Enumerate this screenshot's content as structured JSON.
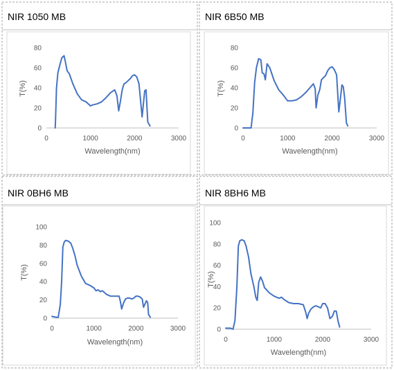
{
  "chart_data": [
    {
      "panel_title": "NIR 1050 MB",
      "type": "line",
      "xlabel": "Wavelength(nm)",
      "ylabel": "T(%)",
      "xlim": [
        0,
        3000
      ],
      "ylim": [
        0,
        80
      ],
      "xticks": [
        0,
        1000,
        2000,
        3000
      ],
      "yticks": [
        0,
        20,
        40,
        60,
        80
      ],
      "grid": false,
      "color": "#4472c4",
      "series": [
        {
          "x": [
            200,
            205,
            230,
            260,
            300,
            350,
            400,
            430,
            470,
            520,
            600,
            700,
            800,
            900,
            1000,
            1050,
            1150,
            1250,
            1350,
            1450,
            1550,
            1600,
            1640,
            1680,
            1720,
            1760,
            1800,
            1850,
            1900,
            1950,
            2000,
            2050,
            2100,
            2150,
            2170,
            2200,
            2230,
            2260,
            2300,
            2350
          ],
          "y": [
            0,
            6,
            40,
            55,
            62,
            70,
            72,
            66,
            57,
            54,
            44,
            34,
            28,
            26,
            22,
            23,
            24,
            26,
            30,
            35,
            38,
            32,
            17,
            27,
            38,
            44,
            45,
            47,
            49,
            52,
            53,
            51,
            44,
            21,
            11,
            24,
            37,
            38,
            6,
            2
          ]
        }
      ]
    },
    {
      "panel_title": "NIR 6B50 MB",
      "type": "line",
      "xlabel": "Wavelength(nm)",
      "ylabel": "T(%)",
      "xlim": [
        0,
        3000
      ],
      "ylim": [
        0,
        80
      ],
      "xticks": [
        0,
        1000,
        2000,
        3000
      ],
      "yticks": [
        0,
        20,
        40,
        60,
        80
      ],
      "grid": false,
      "color": "#4472c4",
      "series": [
        {
          "x": [
            0,
            100,
            180,
            220,
            260,
            300,
            350,
            400,
            430,
            470,
            500,
            540,
            600,
            700,
            800,
            900,
            1000,
            1100,
            1200,
            1300,
            1400,
            1500,
            1580,
            1620,
            1640,
            1680,
            1720,
            1760,
            1800,
            1850,
            1900,
            1950,
            2000,
            2050,
            2100,
            2150,
            2180,
            2220,
            2250,
            2280,
            2320,
            2350
          ],
          "y": [
            0,
            0,
            0,
            15,
            45,
            60,
            69,
            68,
            55,
            54,
            48,
            64,
            60,
            47,
            38,
            33,
            27,
            27,
            28,
            31,
            35,
            40,
            44,
            39,
            20,
            33,
            38,
            48,
            50,
            52,
            57,
            60,
            61,
            58,
            53,
            16,
            27,
            43,
            41,
            30,
            5,
            2
          ]
        }
      ]
    },
    {
      "panel_title": "NIR 0BH6 MB",
      "type": "line",
      "xlabel": "Wavelength(nm)",
      "ylabel": "T(%)",
      "xlim": [
        0,
        3000
      ],
      "ylim": [
        0,
        100
      ],
      "xticks": [
        0,
        1000,
        2000,
        3000
      ],
      "yticks": [
        0,
        20,
        40,
        60,
        80,
        100
      ],
      "grid": false,
      "color": "#4472c4",
      "series": [
        {
          "x": [
            0,
            100,
            150,
            200,
            230,
            260,
            290,
            320,
            350,
            400,
            450,
            500,
            550,
            600,
            700,
            800,
            900,
            1000,
            1050,
            1100,
            1150,
            1200,
            1300,
            1400,
            1500,
            1550,
            1600,
            1630,
            1660,
            1700,
            1750,
            1800,
            1850,
            1900,
            1950,
            2000,
            2050,
            2100,
            2150,
            2180,
            2220,
            2250,
            2280,
            2300,
            2340
          ],
          "y": [
            2,
            1,
            1,
            15,
            40,
            78,
            83,
            85,
            85,
            84,
            82,
            76,
            68,
            58,
            46,
            38,
            36,
            33,
            30,
            31,
            29,
            30,
            26,
            24,
            24,
            24,
            24,
            18,
            10,
            16,
            21,
            22,
            22,
            21,
            22,
            24,
            24,
            23,
            21,
            12,
            16,
            19,
            17,
            4,
            1
          ]
        }
      ]
    },
    {
      "panel_title": "NIR 8BH6 MB",
      "type": "line",
      "xlabel": "Wavelength(nm)",
      "ylabel": "T(%)",
      "xlim": [
        0,
        3000
      ],
      "ylim": [
        0,
        100
      ],
      "xticks": [
        0,
        1000,
        2000,
        3000
      ],
      "yticks": [
        0,
        20,
        40,
        60,
        80,
        100
      ],
      "grid": false,
      "color": "#4472c4",
      "series": [
        {
          "x": [
            0,
            100,
            150,
            190,
            230,
            260,
            290,
            330,
            380,
            420,
            470,
            520,
            580,
            620,
            650,
            680,
            720,
            760,
            800,
            900,
            1000,
            1100,
            1150,
            1200,
            1300,
            1400,
            1500,
            1600,
            1650,
            1680,
            1710,
            1760,
            1810,
            1860,
            1910,
            1960,
            2000,
            2050,
            2100,
            2150,
            2200,
            2240,
            2280,
            2320,
            2350
          ],
          "y": [
            1,
            1,
            0,
            8,
            40,
            78,
            83,
            84,
            83,
            78,
            68,
            52,
            40,
            30,
            27,
            44,
            49,
            45,
            39,
            34,
            31,
            29,
            30,
            28,
            25,
            24,
            24,
            23,
            16,
            10,
            15,
            19,
            21,
            22,
            21,
            20,
            24,
            24,
            20,
            10,
            12,
            17,
            17,
            7,
            2
          ]
        }
      ]
    }
  ]
}
